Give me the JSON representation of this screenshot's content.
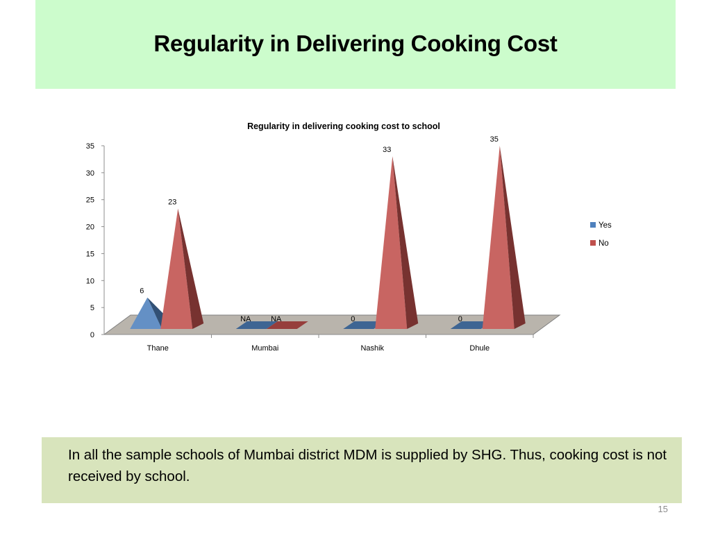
{
  "slide": {
    "title": "Regularity in Delivering Cooking Cost",
    "note": "In all the sample schools of Mumbai district MDM is supplied by SHG. Thus, cooking cost is not received by school.",
    "page_number": "15"
  },
  "chart_data": {
    "type": "bar",
    "style": "3d-pyramid",
    "title": "Regularity in delivering cooking cost to school",
    "xlabel": "",
    "ylabel": "",
    "categories": [
      "Thane",
      "Mumbai",
      "Nashik",
      "Dhule"
    ],
    "series": [
      {
        "name": "Yes",
        "values": [
          6,
          null,
          0,
          0
        ],
        "labels": [
          "6",
          "NA",
          "0",
          "0"
        ],
        "color": "#4f81bd"
      },
      {
        "name": "No",
        "values": [
          23,
          null,
          33,
          35
        ],
        "labels": [
          "23",
          "NA",
          "33",
          "35"
        ],
        "color": "#c0504d"
      }
    ],
    "ylim": [
      0,
      35
    ],
    "yticks": [
      "0",
      "5",
      "10",
      "15",
      "20",
      "25",
      "30",
      "35"
    ],
    "legend": "right",
    "grid": false
  }
}
